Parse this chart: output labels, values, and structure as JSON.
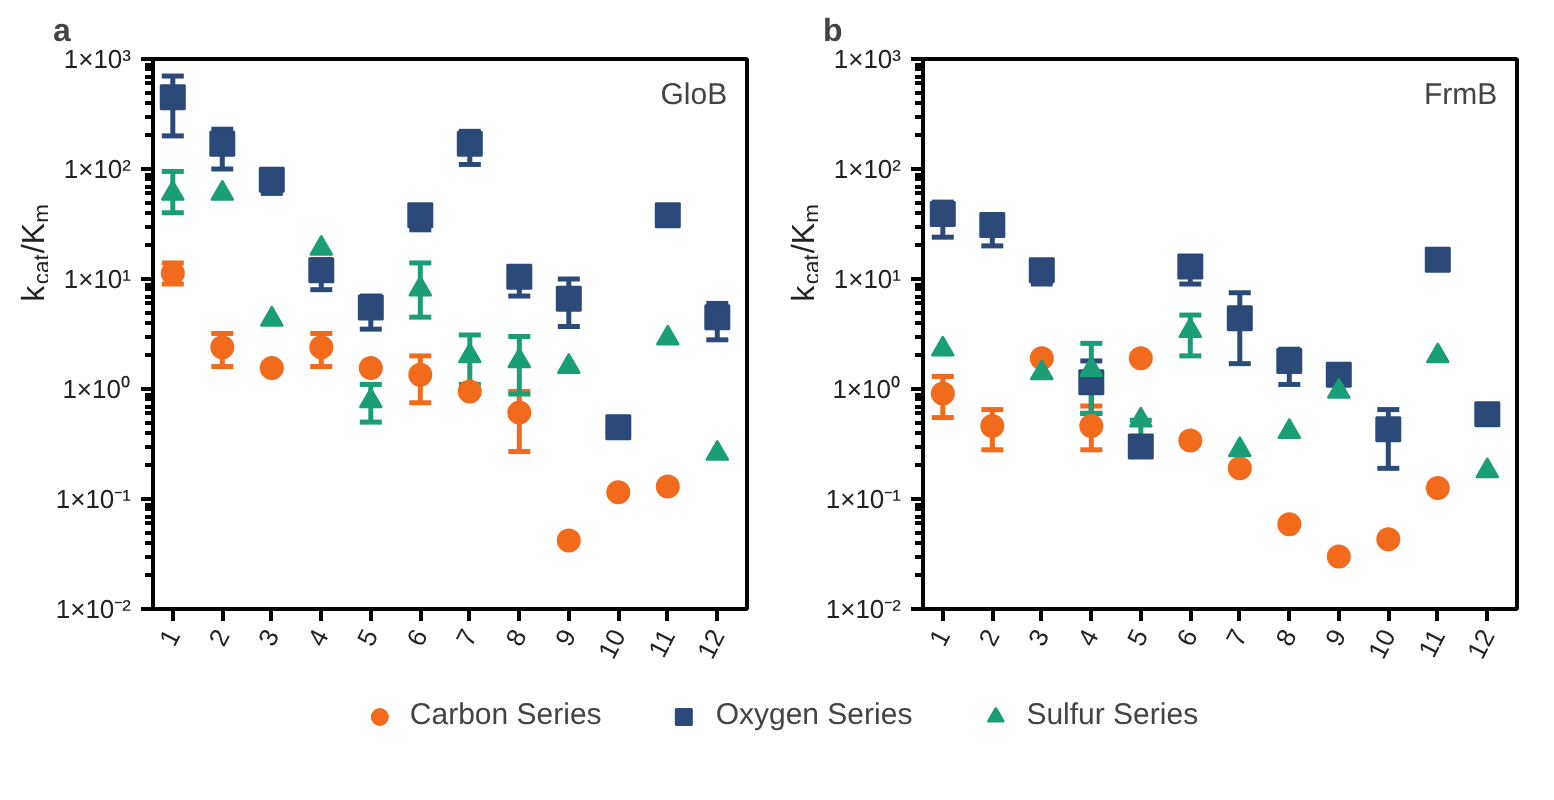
{
  "chart_data": [
    {
      "type": "scatter",
      "title": "a",
      "ylabel": "k$_{cat}$/K$_{m}$",
      "annotations": [
        "GloB"
      ],
      "categories": [
        "1",
        "2",
        "3",
        "4",
        "5",
        "6",
        "7",
        "8",
        "9",
        "10",
        "11",
        "12"
      ],
      "ylim": [
        0.01,
        1000
      ],
      "log": "y",
      "yticks": [
        {
          "value": 0.01,
          "label": "1×10⁻²"
        },
        {
          "value": 0.1,
          "label": "1×10⁻¹"
        },
        {
          "value": 1,
          "label": "1×10⁰"
        },
        {
          "value": 10,
          "label": "1×10¹"
        },
        {
          "value": 100,
          "label": "1×10²"
        },
        {
          "value": 1000,
          "label": "1×10³"
        }
      ],
      "grid": false,
      "legend": "bottom",
      "series": [
        {
          "name": "Carbon Series",
          "color": "#f26a1b",
          "marker": "circle",
          "values": [
            11.3,
            2.4,
            1.55,
            2.4,
            1.55,
            1.35,
            0.95,
            0.61,
            0.042,
            0.115,
            0.13,
            null
          ],
          "errors": [
            [
              9,
              14
            ],
            [
              1.6,
              3.2
            ],
            null,
            [
              1.6,
              3.2
            ],
            null,
            [
              0.75,
              2
            ],
            null,
            [
              0.27,
              0.95
            ],
            null,
            null,
            null,
            null
          ]
        },
        {
          "name": "Oxygen Series",
          "color": "#2b4a7a",
          "marker": "square",
          "values": [
            450,
            170,
            80,
            12,
            5.5,
            38,
            170,
            10.5,
            6.6,
            0.45,
            38,
            4.5
          ],
          "errors": [
            [
              200,
              700
            ],
            [
              100,
              230
            ],
            [
              60,
              80
            ],
            [
              8,
              15
            ],
            [
              3.5,
              7
            ],
            [
              28,
              38
            ],
            [
              110,
              220
            ],
            [
              7,
              10.5
            ],
            [
              3.7,
              10
            ],
            null,
            null,
            [
              2.8,
              6
            ]
          ]
        },
        {
          "name": "Sulfur Series",
          "color": "#1a9e77",
          "marker": "triangle",
          "values": [
            60,
            60,
            4.3,
            19,
            0.78,
            8.1,
            2.0,
            1.8,
            1.6,
            null,
            2.9,
            0.26
          ],
          "errors": [
            [
              40,
              95
            ],
            null,
            null,
            null,
            [
              0.5,
              1.1
            ],
            [
              4.5,
              14
            ],
            [
              1.1,
              3.1
            ],
            [
              0.9,
              3
            ],
            null,
            null,
            null,
            null
          ]
        }
      ]
    },
    {
      "type": "scatter",
      "title": "b",
      "ylabel": "k$_{cat}$/K$_{m}$",
      "annotations": [
        "FrmB"
      ],
      "categories": [
        "1",
        "2",
        "3",
        "4",
        "5",
        "6",
        "7",
        "8",
        "9",
        "10",
        "11",
        "12"
      ],
      "ylim": [
        0.01,
        1000
      ],
      "log": "y",
      "yticks": [
        {
          "value": 0.01,
          "label": "1×10⁻²"
        },
        {
          "value": 0.1,
          "label": "1×10⁻¹"
        },
        {
          "value": 1,
          "label": "1×10⁰"
        },
        {
          "value": 10,
          "label": "1×10¹"
        },
        {
          "value": 100,
          "label": "1×10²"
        },
        {
          "value": 1000,
          "label": "1×10³"
        }
      ],
      "grid": false,
      "series": [
        {
          "color": "#f26a1b",
          "marker": "circle",
          "values": [
            0.91,
            0.46,
            1.9,
            0.46,
            1.9,
            0.34,
            0.19,
            0.059,
            0.03,
            0.043,
            0.126,
            null
          ],
          "errors": [
            [
              0.55,
              1.3
            ],
            [
              0.28,
              0.65
            ],
            null,
            [
              0.28,
              0.7
            ],
            null,
            null,
            null,
            null,
            null,
            null,
            null,
            null
          ]
        },
        {
          "color": "#2b4a7a",
          "marker": "square",
          "values": [
            39,
            31,
            12,
            1.15,
            0.3,
            13,
            4.4,
            1.8,
            1.35,
            0.43,
            15,
            0.59
          ],
          "errors": [
            [
              24,
              50
            ],
            [
              20,
              31
            ],
            [
              9,
              12
            ],
            [
              0.6,
              1.8
            ],
            null,
            [
              9,
              13
            ],
            [
              1.7,
              7.5
            ],
            [
              1.1,
              2.3
            ],
            null,
            [
              0.19,
              0.65
            ],
            null,
            null
          ]
        },
        {
          "color": "#1a9e77",
          "marker": "triangle",
          "values": [
            2.3,
            null,
            1.4,
            1.5,
            0.52,
            3.4,
            0.28,
            0.41,
            0.95,
            null,
            2.0,
            0.18
          ],
          "errors": [
            null,
            null,
            null,
            [
              0.6,
              2.6
            ],
            [
              0.35,
              0.52
            ],
            [
              2,
              4.7
            ],
            null,
            null,
            null,
            null,
            null,
            null
          ]
        }
      ]
    }
  ]
}
